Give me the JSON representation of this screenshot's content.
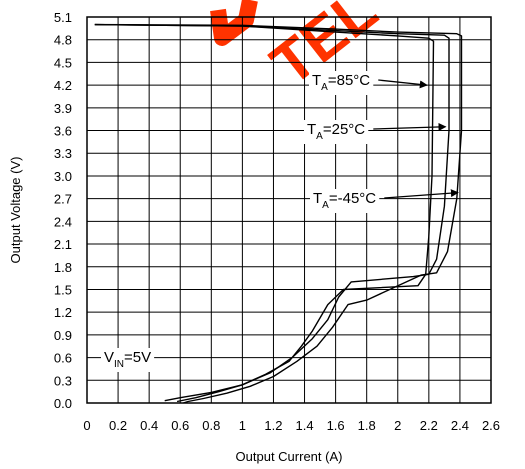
{
  "chart_data": {
    "type": "line",
    "title": "",
    "xlabel": "Output Current (A)",
    "ylabel": "Output Voltage (V)",
    "xlim": [
      0,
      2.6
    ],
    "ylim": [
      0,
      5.1
    ],
    "x_ticks": [
      "0",
      "0.2",
      "0.4",
      "0.6",
      "0.8",
      "1",
      "1.2",
      "1.4",
      "1.6",
      "1.8",
      "2",
      "2.2",
      "2.4",
      "2.6"
    ],
    "y_ticks": [
      "0.0",
      "0.3",
      "0.6",
      "0.9",
      "1.2",
      "1.5",
      "1.8",
      "2.1",
      "2.4",
      "2.7",
      "3.0",
      "3.3",
      "3.6",
      "3.9",
      "4.2",
      "4.5",
      "4.8",
      "5.1"
    ],
    "grid": true,
    "line_color": "#000000",
    "series": [
      {
        "label_main": "T",
        "label_sub": "A",
        "label_rest": "=85°C",
        "points": [
          [
            0.05,
            5.0
          ],
          [
            1.0,
            4.98
          ],
          [
            1.6,
            4.9
          ],
          [
            2.0,
            4.85
          ],
          [
            2.2,
            4.82
          ],
          [
            2.23,
            4.78
          ],
          [
            2.22,
            3.0
          ],
          [
            2.2,
            2.2
          ],
          [
            2.18,
            1.7
          ],
          [
            2.13,
            1.55
          ],
          [
            1.65,
            1.5
          ],
          [
            1.55,
            1.3
          ],
          [
            1.45,
            0.95
          ],
          [
            1.38,
            0.75
          ],
          [
            1.3,
            0.55
          ],
          [
            1.15,
            0.38
          ],
          [
            1.0,
            0.24
          ],
          [
            0.85,
            0.15
          ],
          [
            0.7,
            0.07
          ],
          [
            0.58,
            0.02
          ]
        ]
      },
      {
        "label_main": "T",
        "label_sub": "A",
        "label_rest": "=25°C",
        "points": [
          [
            0.05,
            5.0
          ],
          [
            1.0,
            4.98
          ],
          [
            1.6,
            4.92
          ],
          [
            2.0,
            4.88
          ],
          [
            2.3,
            4.86
          ],
          [
            2.33,
            4.82
          ],
          [
            2.33,
            3.6
          ],
          [
            2.3,
            2.6
          ],
          [
            2.25,
            1.9
          ],
          [
            2.2,
            1.7
          ],
          [
            2.1,
            1.67
          ],
          [
            1.7,
            1.6
          ],
          [
            1.62,
            1.4
          ],
          [
            1.55,
            1.1
          ],
          [
            1.45,
            0.85
          ],
          [
            1.32,
            0.6
          ],
          [
            1.18,
            0.4
          ],
          [
            1.0,
            0.24
          ],
          [
            0.8,
            0.14
          ],
          [
            0.6,
            0.07
          ],
          [
            0.5,
            0.03
          ]
        ]
      },
      {
        "label_main": "T",
        "label_sub": "A",
        "label_rest": "=-45°C",
        "points": [
          [
            0.05,
            5.0
          ],
          [
            1.0,
            4.99
          ],
          [
            1.6,
            4.94
          ],
          [
            2.0,
            4.9
          ],
          [
            2.38,
            4.88
          ],
          [
            2.41,
            4.85
          ],
          [
            2.41,
            3.6
          ],
          [
            2.38,
            2.7
          ],
          [
            2.32,
            2.0
          ],
          [
            2.25,
            1.72
          ],
          [
            2.15,
            1.69
          ],
          [
            1.8,
            1.36
          ],
          [
            1.68,
            1.3
          ],
          [
            1.58,
            1.0
          ],
          [
            1.48,
            0.75
          ],
          [
            1.35,
            0.55
          ],
          [
            1.2,
            0.35
          ],
          [
            1.05,
            0.22
          ],
          [
            0.9,
            0.13
          ],
          [
            0.75,
            0.06
          ],
          [
            0.65,
            0.02
          ],
          [
            0.62,
            0.0
          ]
        ]
      }
    ],
    "annotations": [
      {
        "main": "T",
        "sub": "A",
        "rest": "=85°C",
        "arrow_to": [
          2.2,
          4.2
        ]
      },
      {
        "main": "T",
        "sub": "A",
        "rest": "=25°C",
        "arrow_to": [
          2.32,
          3.65
        ]
      },
      {
        "main": "T",
        "sub": "A",
        "rest": "=-45°C",
        "arrow_to": [
          2.4,
          2.78
        ]
      },
      {
        "main": "V",
        "sub": "IN",
        "rest": "=5V",
        "arrow_to": null
      }
    ]
  },
  "watermark": {
    "text": "TEL",
    "color": "#ff3300"
  }
}
